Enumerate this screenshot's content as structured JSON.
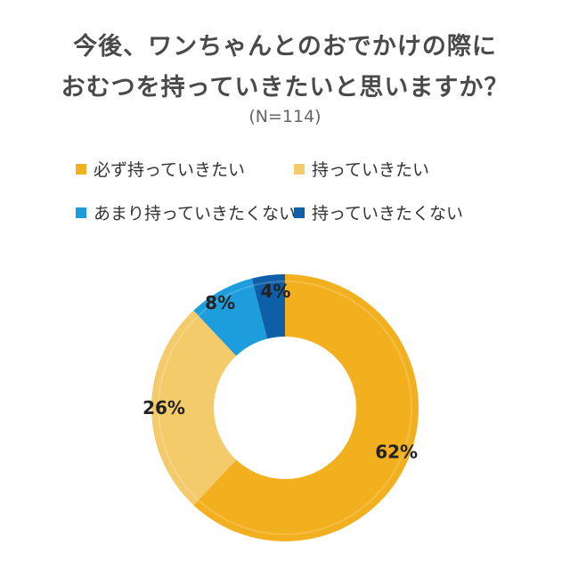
{
  "title_line1": "今後、ワンちゃんとのおでかけの際に",
  "title_line2": "おむつを持っていきたいと思いますか？",
  "subtitle": "(N=114)",
  "colors": {
    "series1": "#F2B01E",
    "series2": "#F4CB6B",
    "series3": "#1E9DDC",
    "series4": "#0E5FA8"
  },
  "chart_data": {
    "type": "pie",
    "style": "donut",
    "unit": "%",
    "legend_position": "top",
    "series": [
      {
        "name": "必ず持っていきたい",
        "value": 62,
        "label": "62%"
      },
      {
        "name": "持っていきたい",
        "value": 26,
        "label": "26%"
      },
      {
        "name": "あまり持っていきたくない",
        "value": 8,
        "label": "8%"
      },
      {
        "name": "持っていきたくない",
        "value": 4,
        "label": "4%"
      }
    ]
  }
}
